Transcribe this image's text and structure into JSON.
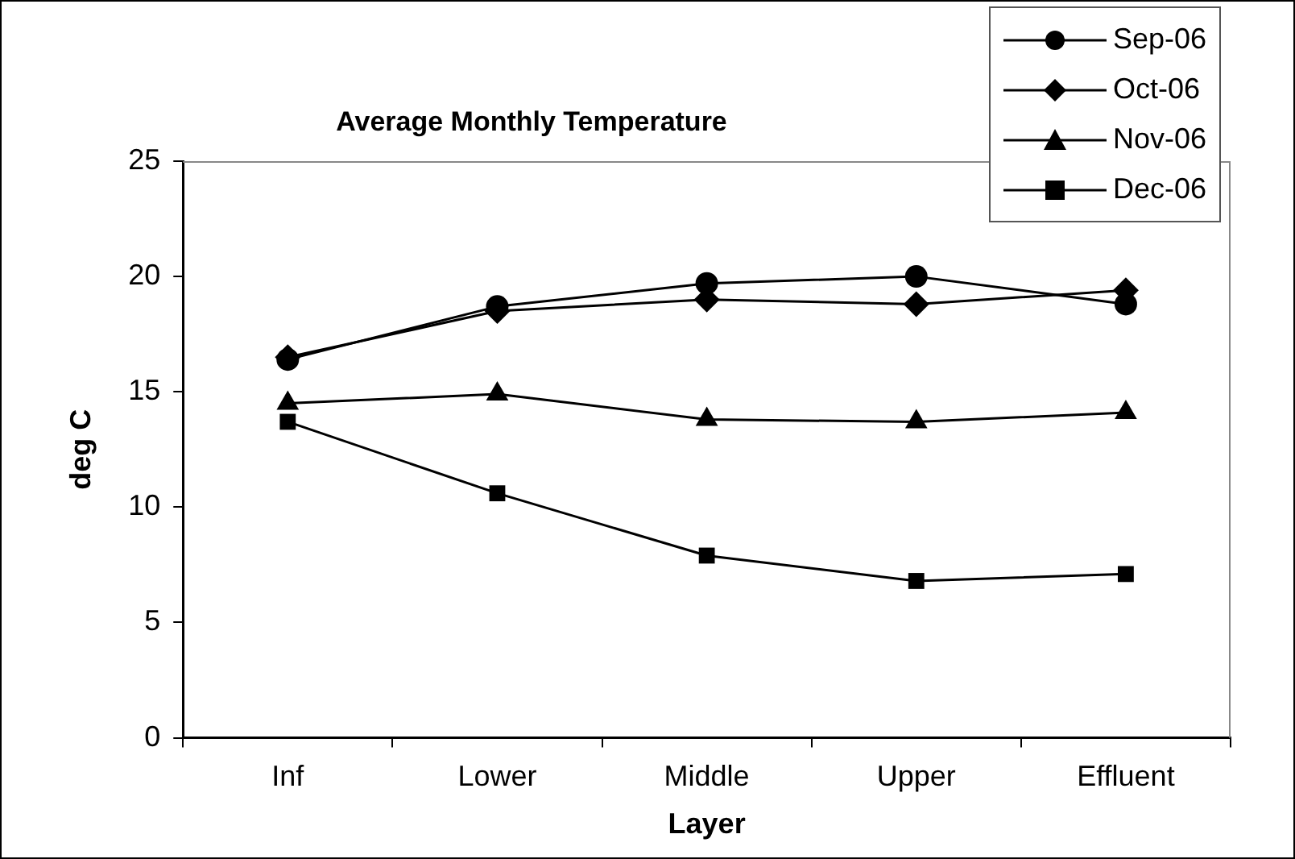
{
  "chart_data": {
    "type": "line",
    "title": "Average Monthly Temperature",
    "xlabel": "Layer",
    "ylabel": "deg C",
    "categories": [
      "Inf",
      "Lower",
      "Middle",
      "Upper",
      "Effluent"
    ],
    "series": [
      {
        "name": "Sep-06",
        "color": "#000000",
        "marker": "circle",
        "values": [
          16.4,
          18.7,
          19.7,
          20.0,
          18.8
        ]
      },
      {
        "name": "Oct-06",
        "color": "#000000",
        "marker": "diamond",
        "values": [
          16.5,
          18.5,
          19.0,
          18.8,
          19.4
        ]
      },
      {
        "name": "Nov-06",
        "color": "#000000",
        "marker": "triangle",
        "values": [
          14.5,
          14.9,
          13.8,
          13.7,
          14.1
        ]
      },
      {
        "name": "Dec-06",
        "color": "#000000",
        "marker": "square",
        "values": [
          13.7,
          10.6,
          7.9,
          6.8,
          7.1
        ]
      }
    ],
    "ylim": [
      0,
      25
    ],
    "yticks": [
      0,
      5,
      10,
      15,
      20,
      25
    ],
    "grid": false,
    "legend": "top right"
  }
}
